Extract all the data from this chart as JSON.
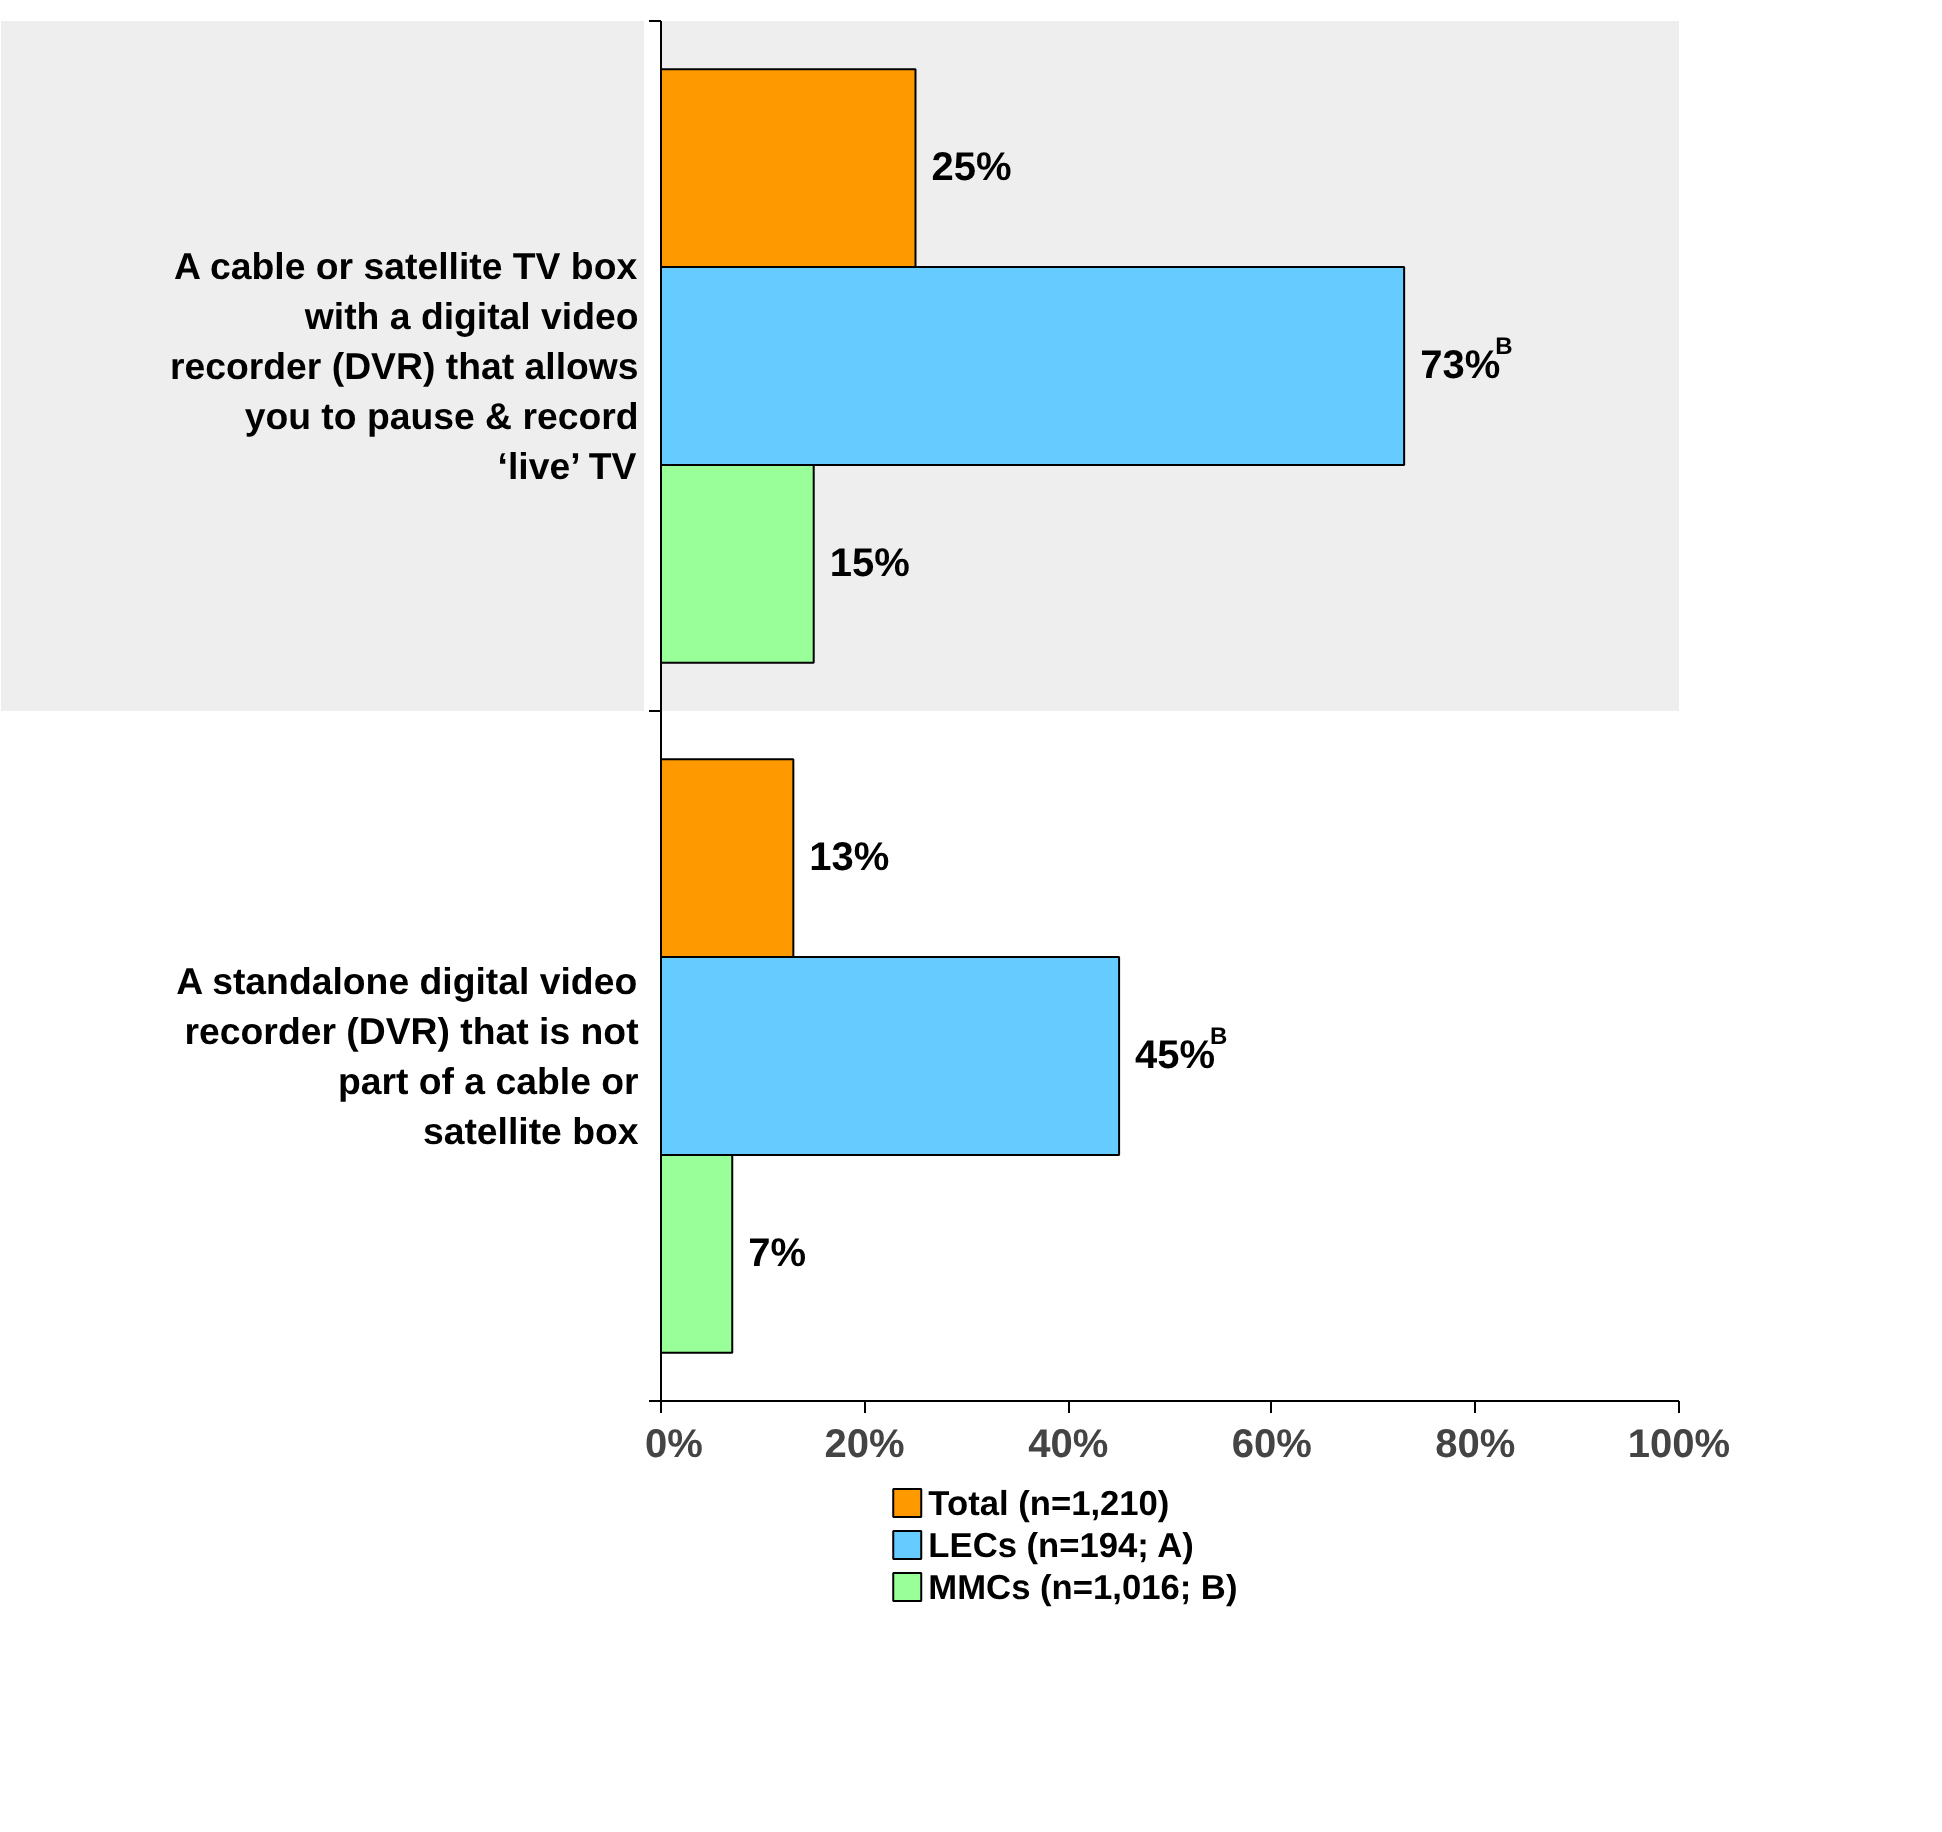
{
  "chart_data": {
    "type": "bar",
    "orientation": "horizontal",
    "categories": [
      "A cable or satellite TV box with a digital video recorder (DVR) that allows you to pause & record ‘live’ TV",
      "A standalone digital video recorder (DVR) that is not part of a cable or satellite box"
    ],
    "series": [
      {
        "name": "Total (n=1,210)",
        "color": "#ff9900",
        "values": [
          25,
          13
        ],
        "value_labels": [
          "25%",
          "13%"
        ]
      },
      {
        "name": "LECs (n=194; A)",
        "color": "#66ccff",
        "values": [
          73,
          45
        ],
        "value_labels": [
          "73%$^{B}$",
          "45%$^{B}$"
        ]
      },
      {
        "name": "MMCs (n=1,016; B)",
        "color": "#99ff99",
        "values": [
          15,
          7
        ],
        "value_labels": [
          "15%",
          "7%"
        ]
      }
    ],
    "xlim": [
      0,
      100
    ],
    "xticks": [
      {
        "value": 0,
        "label": "0%"
      },
      {
        "value": 20,
        "label": "20%"
      },
      {
        "value": 40,
        "label": "40%"
      },
      {
        "value": 60,
        "label": "60%"
      },
      {
        "value": 80,
        "label": "80%"
      },
      {
        "value": 100,
        "label": "100%"
      }
    ],
    "bands": [
      {
        "axis": "y",
        "from": "A cable or satellite TV box with a digital video recorder (DVR) that allows you to pause & record ‘live’ TV",
        "to": "A cable or satellite TV box with a digital video recorder (DVR) that allows you to pause & record ‘live’ TV",
        "color": "#eeeeee"
      }
    ],
    "grid": false,
    "legend": "bottom"
  }
}
